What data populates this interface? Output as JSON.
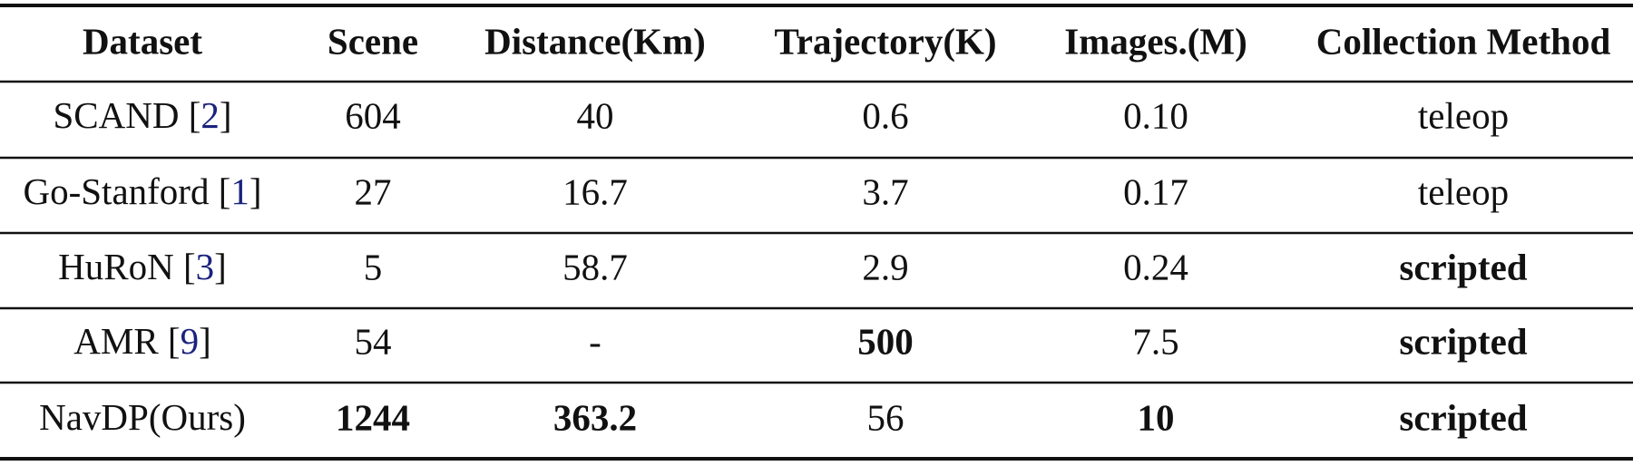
{
  "table": {
    "header": [
      "Dataset",
      "Scene",
      "Distance(Km)",
      "Trajectory(K)",
      "Images.(M)",
      "Collection Method"
    ],
    "rows": [
      {
        "dataset": "SCAND",
        "ref": "[2]",
        "cells": [
          "604",
          "40",
          "0.6",
          "0.10",
          "teleop"
        ],
        "bold_columns": []
      },
      {
        "dataset": "Go-Stanford",
        "ref": "[1]",
        "cells": [
          "27",
          "16.7",
          "3.7",
          "0.17",
          "teleop"
        ],
        "bold_columns": []
      },
      {
        "dataset": "HuRoN",
        "ref": "[3]",
        "cells": [
          "5",
          "58.7",
          "2.9",
          "0.24",
          "scripted"
        ],
        "bold_columns": [
          4
        ]
      },
      {
        "dataset": "AMR",
        "ref": "[9]",
        "cells": [
          "54",
          "-",
          "500",
          "7.5",
          "scripted"
        ],
        "bold_columns": [
          2,
          4
        ]
      },
      {
        "dataset": "NavDP(Ours)",
        "ref": null,
        "cells": [
          "1244",
          "363.2",
          "56",
          "10",
          "scripted"
        ],
        "bold_columns": [
          0,
          1,
          3,
          4
        ]
      }
    ],
    "ref_color": "#1a237e"
  }
}
